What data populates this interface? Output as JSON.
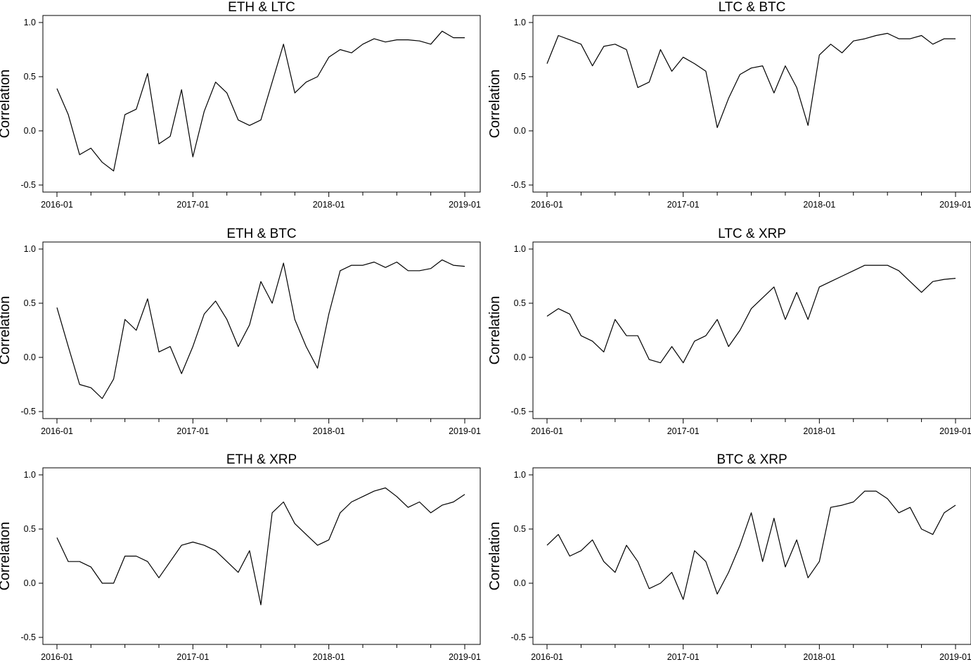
{
  "chart_data": [
    {
      "type": "line",
      "title": "ETH & LTC",
      "xlabel": "",
      "ylabel": "Correlation",
      "xlim": [
        "2016-01",
        "2019-01"
      ],
      "ylim": [
        -0.5,
        1.0
      ],
      "x_ticks": [
        "2016-01",
        "2017-01",
        "2018-01",
        "2019-01"
      ],
      "y_ticks": [
        "-0.5",
        "0.0",
        "0.5",
        "1.0"
      ],
      "grid": false,
      "series": [
        {
          "x": [
            "2016-01",
            "2016-02",
            "2016-03",
            "2016-04",
            "2016-05",
            "2016-06",
            "2016-07",
            "2016-08",
            "2016-09",
            "2016-10",
            "2016-11",
            "2016-12",
            "2017-01",
            "2017-02",
            "2017-03",
            "2017-04",
            "2017-05",
            "2017-06",
            "2017-07",
            "2017-08",
            "2017-09",
            "2017-10",
            "2017-11",
            "2017-12",
            "2018-01",
            "2018-02",
            "2018-03",
            "2018-04",
            "2018-05",
            "2018-06",
            "2018-07",
            "2018-08",
            "2018-09",
            "2018-10",
            "2018-11",
            "2018-12",
            "2019-01"
          ],
          "y": [
            0.39,
            0.15,
            -0.22,
            -0.16,
            -0.29,
            -0.37,
            0.15,
            0.2,
            0.53,
            -0.12,
            -0.05,
            0.38,
            -0.24,
            0.18,
            0.45,
            0.35,
            0.1,
            0.05,
            0.1,
            0.45,
            0.8,
            0.35,
            0.45,
            0.5,
            0.68,
            0.75,
            0.72,
            0.8,
            0.85,
            0.82,
            0.84,
            0.84,
            0.83,
            0.8,
            0.92,
            0.86,
            0.86
          ]
        }
      ]
    },
    {
      "type": "line",
      "title": "LTC & BTC",
      "xlabel": "",
      "ylabel": "Correlation",
      "xlim": [
        "2016-01",
        "2019-01"
      ],
      "ylim": [
        -0.5,
        1.0
      ],
      "x_ticks": [
        "2016-01",
        "2017-01",
        "2018-01",
        "2019-01"
      ],
      "y_ticks": [
        "-0.5",
        "0.0",
        "0.5",
        "1.0"
      ],
      "grid": false,
      "series": [
        {
          "x": [
            "2016-01",
            "2016-02",
            "2016-03",
            "2016-04",
            "2016-05",
            "2016-06",
            "2016-07",
            "2016-08",
            "2016-09",
            "2016-10",
            "2016-11",
            "2016-12",
            "2017-01",
            "2017-02",
            "2017-03",
            "2017-04",
            "2017-05",
            "2017-06",
            "2017-07",
            "2017-08",
            "2017-09",
            "2017-10",
            "2017-11",
            "2017-12",
            "2018-01",
            "2018-02",
            "2018-03",
            "2018-04",
            "2018-05",
            "2018-06",
            "2018-07",
            "2018-08",
            "2018-09",
            "2018-10",
            "2018-11",
            "2018-12",
            "2019-01"
          ],
          "y": [
            0.62,
            0.88,
            0.84,
            0.8,
            0.6,
            0.78,
            0.8,
            0.75,
            0.4,
            0.45,
            0.75,
            0.55,
            0.68,
            0.62,
            0.55,
            0.03,
            0.3,
            0.52,
            0.58,
            0.6,
            0.35,
            0.6,
            0.4,
            0.05,
            0.7,
            0.8,
            0.72,
            0.83,
            0.85,
            0.88,
            0.9,
            0.85,
            0.85,
            0.88,
            0.8,
            0.85,
            0.85
          ]
        }
      ]
    },
    {
      "type": "line",
      "title": "ETH & BTC",
      "xlabel": "",
      "ylabel": "Correlation",
      "xlim": [
        "2016-01",
        "2019-01"
      ],
      "ylim": [
        -0.5,
        1.0
      ],
      "x_ticks": [
        "2016-01",
        "2017-01",
        "2018-01",
        "2019-01"
      ],
      "y_ticks": [
        "-0.5",
        "0.0",
        "0.5",
        "1.0"
      ],
      "grid": false,
      "series": [
        {
          "x": [
            "2016-01",
            "2016-02",
            "2016-03",
            "2016-04",
            "2016-05",
            "2016-06",
            "2016-07",
            "2016-08",
            "2016-09",
            "2016-10",
            "2016-11",
            "2016-12",
            "2017-01",
            "2017-02",
            "2017-03",
            "2017-04",
            "2017-05",
            "2017-06",
            "2017-07",
            "2017-08",
            "2017-09",
            "2017-10",
            "2017-11",
            "2017-12",
            "2018-01",
            "2018-02",
            "2018-03",
            "2018-04",
            "2018-05",
            "2018-06",
            "2018-07",
            "2018-08",
            "2018-09",
            "2018-10",
            "2018-11",
            "2018-12",
            "2019-01"
          ],
          "y": [
            0.46,
            0.1,
            -0.25,
            -0.28,
            -0.38,
            -0.2,
            0.35,
            0.25,
            0.54,
            0.05,
            0.1,
            -0.15,
            0.1,
            0.4,
            0.52,
            0.35,
            0.1,
            0.3,
            0.7,
            0.5,
            0.87,
            0.35,
            0.1,
            -0.1,
            0.4,
            0.8,
            0.85,
            0.85,
            0.88,
            0.83,
            0.88,
            0.8,
            0.8,
            0.82,
            0.9,
            0.85,
            0.84
          ]
        }
      ]
    },
    {
      "type": "line",
      "title": "LTC & XRP",
      "xlabel": "",
      "ylabel": "Correlation",
      "xlim": [
        "2016-01",
        "2019-01"
      ],
      "ylim": [
        -0.5,
        1.0
      ],
      "x_ticks": [
        "2016-01",
        "2017-01",
        "2018-01",
        "2019-01"
      ],
      "y_ticks": [
        "-0.5",
        "0.0",
        "0.5",
        "1.0"
      ],
      "grid": false,
      "series": [
        {
          "x": [
            "2016-01",
            "2016-02",
            "2016-03",
            "2016-04",
            "2016-05",
            "2016-06",
            "2016-07",
            "2016-08",
            "2016-09",
            "2016-10",
            "2016-11",
            "2016-12",
            "2017-01",
            "2017-02",
            "2017-03",
            "2017-04",
            "2017-05",
            "2017-06",
            "2017-07",
            "2017-08",
            "2017-09",
            "2017-10",
            "2017-11",
            "2017-12",
            "2018-01",
            "2018-02",
            "2018-03",
            "2018-04",
            "2018-05",
            "2018-06",
            "2018-07",
            "2018-08",
            "2018-09",
            "2018-10",
            "2018-11",
            "2018-12",
            "2019-01"
          ],
          "y": [
            0.38,
            0.45,
            0.4,
            0.2,
            0.15,
            0.05,
            0.35,
            0.2,
            0.2,
            -0.02,
            -0.05,
            0.1,
            -0.05,
            0.15,
            0.2,
            0.35,
            0.1,
            0.25,
            0.45,
            0.55,
            0.65,
            0.35,
            0.6,
            0.35,
            0.65,
            0.7,
            0.75,
            0.8,
            0.85,
            0.85,
            0.85,
            0.8,
            0.7,
            0.6,
            0.7,
            0.72,
            0.73
          ]
        }
      ]
    },
    {
      "type": "line",
      "title": "ETH & XRP",
      "xlabel": "",
      "ylabel": "Correlation",
      "xlim": [
        "2016-01",
        "2019-01"
      ],
      "ylim": [
        -0.5,
        1.0
      ],
      "x_ticks": [
        "2016-01",
        "2017-01",
        "2018-01",
        "2019-01"
      ],
      "y_ticks": [
        "-0.5",
        "0.0",
        "0.5",
        "1.0"
      ],
      "grid": false,
      "series": [
        {
          "x": [
            "2016-01",
            "2016-02",
            "2016-03",
            "2016-04",
            "2016-05",
            "2016-06",
            "2016-07",
            "2016-08",
            "2016-09",
            "2016-10",
            "2016-11",
            "2016-12",
            "2017-01",
            "2017-02",
            "2017-03",
            "2017-04",
            "2017-05",
            "2017-06",
            "2017-07",
            "2017-08",
            "2017-09",
            "2017-10",
            "2017-11",
            "2017-12",
            "2018-01",
            "2018-02",
            "2018-03",
            "2018-04",
            "2018-05",
            "2018-06",
            "2018-07",
            "2018-08",
            "2018-09",
            "2018-10",
            "2018-11",
            "2018-12",
            "2019-01"
          ],
          "y": [
            0.42,
            0.2,
            0.2,
            0.15,
            0.0,
            0.0,
            0.25,
            0.25,
            0.2,
            0.05,
            0.2,
            0.35,
            0.38,
            0.35,
            0.3,
            0.2,
            0.1,
            0.3,
            -0.2,
            0.65,
            0.75,
            0.55,
            0.45,
            0.35,
            0.4,
            0.65,
            0.75,
            0.8,
            0.85,
            0.88,
            0.8,
            0.7,
            0.75,
            0.65,
            0.72,
            0.75,
            0.82
          ]
        }
      ]
    },
    {
      "type": "line",
      "title": "BTC & XRP",
      "xlabel": "",
      "ylabel": "Correlation",
      "xlim": [
        "2016-01",
        "2019-01"
      ],
      "ylim": [
        -0.5,
        1.0
      ],
      "x_ticks": [
        "2016-01",
        "2017-01",
        "2018-01",
        "2019-01"
      ],
      "y_ticks": [
        "-0.5",
        "0.0",
        "0.5",
        "1.0"
      ],
      "grid": false,
      "series": [
        {
          "x": [
            "2016-01",
            "2016-02",
            "2016-03",
            "2016-04",
            "2016-05",
            "2016-06",
            "2016-07",
            "2016-08",
            "2016-09",
            "2016-10",
            "2016-11",
            "2016-12",
            "2017-01",
            "2017-02",
            "2017-03",
            "2017-04",
            "2017-05",
            "2017-06",
            "2017-07",
            "2017-08",
            "2017-09",
            "2017-10",
            "2017-11",
            "2017-12",
            "2018-01",
            "2018-02",
            "2018-03",
            "2018-04",
            "2018-05",
            "2018-06",
            "2018-07",
            "2018-08",
            "2018-09",
            "2018-10",
            "2018-11",
            "2018-12",
            "2019-01"
          ],
          "y": [
            0.35,
            0.45,
            0.25,
            0.3,
            0.4,
            0.2,
            0.1,
            0.35,
            0.2,
            -0.05,
            0.0,
            0.1,
            -0.15,
            0.3,
            0.2,
            -0.1,
            0.1,
            0.35,
            0.65,
            0.2,
            0.6,
            0.15,
            0.4,
            0.05,
            0.2,
            0.7,
            0.72,
            0.75,
            0.85,
            0.85,
            0.78,
            0.65,
            0.7,
            0.5,
            0.45,
            0.65,
            0.72
          ]
        }
      ]
    }
  ]
}
